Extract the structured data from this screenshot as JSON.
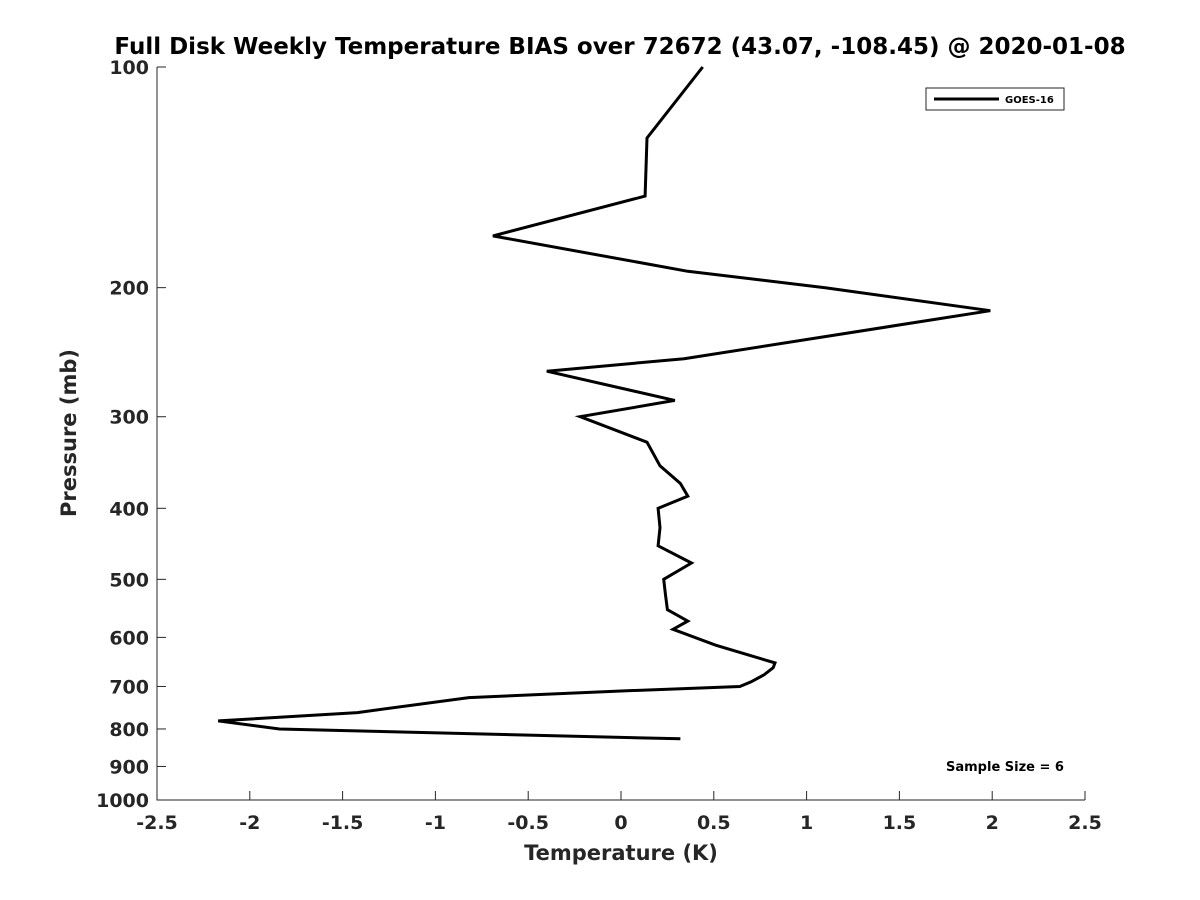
{
  "chart_data": {
    "type": "line",
    "title": "Full Disk Weekly Temperature BIAS over 72672 (43.07, -108.45) @ 2020-01-08",
    "xlabel": "Temperature (K)",
    "ylabel": "Pressure (mb)",
    "xlim": [
      -2.5,
      2.5
    ],
    "ylim": [
      100,
      1000
    ],
    "yscale": "log",
    "yreversed": true,
    "xticks": [
      -2.5,
      -2,
      -1.5,
      -1,
      -0.5,
      0,
      0.5,
      1,
      1.5,
      2,
      2.5
    ],
    "xtick_labels": [
      "-2.5",
      "-2",
      "-1.5",
      "-1",
      "-0.5",
      "0",
      "0.5",
      "1",
      "1.5",
      "2",
      "2.5"
    ],
    "yticks": [
      100,
      200,
      300,
      400,
      500,
      600,
      700,
      800,
      900,
      1000
    ],
    "ytick_labels": [
      "100",
      "200",
      "300",
      "400",
      "500",
      "600",
      "700",
      "800",
      "900",
      "1000"
    ],
    "grid": false,
    "legend_position": "top-right",
    "series": [
      {
        "name": "GOES-16",
        "color": "#000000",
        "points": [
          [
            0.44,
            100
          ],
          [
            0.14,
            125
          ],
          [
            0.13,
            150
          ],
          [
            -0.69,
            170
          ],
          [
            0.36,
            190
          ],
          [
            1.1,
            200
          ],
          [
            1.99,
            215
          ],
          [
            0.34,
            250
          ],
          [
            -0.4,
            260
          ],
          [
            0.29,
            285
          ],
          [
            -0.22,
            300
          ],
          [
            0.14,
            325
          ],
          [
            0.21,
            350
          ],
          [
            0.32,
            370
          ],
          [
            0.36,
            385
          ],
          [
            0.2,
            400
          ],
          [
            0.21,
            425
          ],
          [
            0.2,
            450
          ],
          [
            0.38,
            475
          ],
          [
            0.23,
            500
          ],
          [
            0.24,
            525
          ],
          [
            0.25,
            550
          ],
          [
            0.36,
            570
          ],
          [
            0.28,
            585
          ],
          [
            0.51,
            615
          ],
          [
            0.83,
            650
          ],
          [
            0.82,
            660
          ],
          [
            0.77,
            675
          ],
          [
            0.7,
            690
          ],
          [
            0.64,
            700
          ],
          [
            0.0,
            710
          ],
          [
            -0.82,
            725
          ],
          [
            -1.42,
            760
          ],
          [
            -2.17,
            780
          ],
          [
            -1.84,
            800
          ],
          [
            0.32,
            825
          ]
        ]
      }
    ],
    "annotation": "Sample Size = 6"
  }
}
